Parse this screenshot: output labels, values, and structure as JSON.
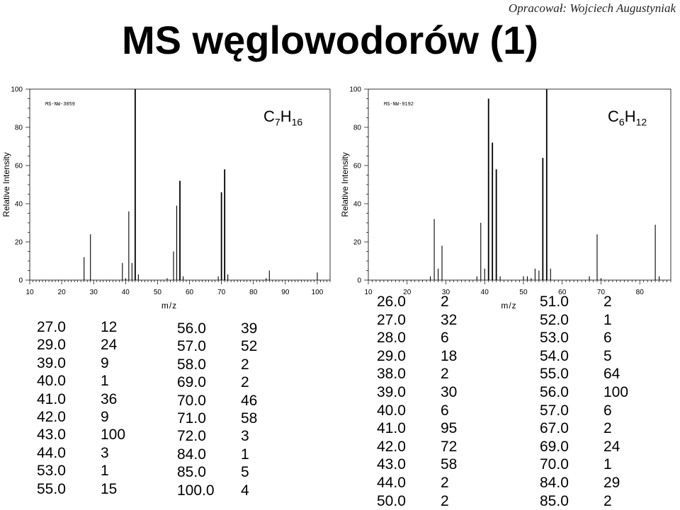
{
  "author": "Opracował: Wojciech Augustyniak",
  "title": "MS węglowodorów (1)",
  "chart_data": [
    {
      "type": "bar",
      "label": "MS-NW-3059",
      "formula": {
        "c": "C",
        "cn": "7",
        "h": "H",
        "hn": "16"
      },
      "xlabel": "m/z",
      "ylabel": "Relative Intensity",
      "xlim": [
        10,
        104
      ],
      "ylim": [
        0,
        100
      ],
      "xticks": [
        10,
        20,
        30,
        40,
        50,
        60,
        70,
        80,
        90,
        100
      ],
      "yticks": [
        0,
        20,
        40,
        60,
        80,
        100
      ],
      "peaks": [
        {
          "mz": 27,
          "i": 12
        },
        {
          "mz": 29,
          "i": 24
        },
        {
          "mz": 39,
          "i": 9
        },
        {
          "mz": 40,
          "i": 1
        },
        {
          "mz": 41,
          "i": 36
        },
        {
          "mz": 42,
          "i": 9
        },
        {
          "mz": 43,
          "i": 100
        },
        {
          "mz": 44,
          "i": 3
        },
        {
          "mz": 53,
          "i": 1
        },
        {
          "mz": 55,
          "i": 15
        },
        {
          "mz": 56,
          "i": 39
        },
        {
          "mz": 57,
          "i": 52
        },
        {
          "mz": 58,
          "i": 2
        },
        {
          "mz": 69,
          "i": 2
        },
        {
          "mz": 70,
          "i": 46
        },
        {
          "mz": 71,
          "i": 58
        },
        {
          "mz": 72,
          "i": 3
        },
        {
          "mz": 84,
          "i": 1
        },
        {
          "mz": 85,
          "i": 5
        },
        {
          "mz": 100,
          "i": 4
        }
      ]
    },
    {
      "type": "bar",
      "label": "MS-NW-9192",
      "formula": {
        "c": "C",
        "cn": "6",
        "h": "H",
        "hn": "12"
      },
      "xlabel": "m/z",
      "ylabel": "Relative Intensity",
      "xlim": [
        10,
        88
      ],
      "ylim": [
        0,
        100
      ],
      "xticks": [
        10,
        20,
        30,
        40,
        50,
        60,
        70,
        80
      ],
      "yticks": [
        0,
        20,
        40,
        60,
        80,
        100
      ],
      "peaks": [
        {
          "mz": 26,
          "i": 2
        },
        {
          "mz": 27,
          "i": 32
        },
        {
          "mz": 28,
          "i": 6
        },
        {
          "mz": 29,
          "i": 18
        },
        {
          "mz": 38,
          "i": 2
        },
        {
          "mz": 39,
          "i": 30
        },
        {
          "mz": 40,
          "i": 6
        },
        {
          "mz": 41,
          "i": 95
        },
        {
          "mz": 42,
          "i": 72
        },
        {
          "mz": 43,
          "i": 58
        },
        {
          "mz": 44,
          "i": 2
        },
        {
          "mz": 50,
          "i": 2
        },
        {
          "mz": 51,
          "i": 2
        },
        {
          "mz": 52,
          "i": 1
        },
        {
          "mz": 53,
          "i": 6
        },
        {
          "mz": 54,
          "i": 5
        },
        {
          "mz": 55,
          "i": 64
        },
        {
          "mz": 56,
          "i": 100
        },
        {
          "mz": 57,
          "i": 6
        },
        {
          "mz": 67,
          "i": 2
        },
        {
          "mz": 69,
          "i": 24
        },
        {
          "mz": 70,
          "i": 1
        },
        {
          "mz": 84,
          "i": 29
        },
        {
          "mz": 85,
          "i": 2
        }
      ]
    }
  ],
  "tables": {
    "t1a": [
      [
        "27.0",
        "12"
      ],
      [
        "29.0",
        "24"
      ],
      [
        "39.0",
        "9"
      ],
      [
        "40.0",
        "1"
      ],
      [
        "41.0",
        "36"
      ],
      [
        "42.0",
        "9"
      ],
      [
        "43.0",
        "100"
      ],
      [
        "44.0",
        "3"
      ],
      [
        "53.0",
        "1"
      ],
      [
        "55.0",
        "15"
      ]
    ],
    "t1b": [
      [
        "56.0",
        "39"
      ],
      [
        "57.0",
        "52"
      ],
      [
        "58.0",
        "2"
      ],
      [
        "69.0",
        "2"
      ],
      [
        "70.0",
        "46"
      ],
      [
        "71.0",
        "58"
      ],
      [
        "72.0",
        "3"
      ],
      [
        "84.0",
        "1"
      ],
      [
        "85.0",
        "5"
      ],
      [
        "100.0",
        "4"
      ]
    ],
    "t2a": [
      [
        "26.0",
        "2"
      ],
      [
        "27.0",
        "32"
      ],
      [
        "28.0",
        "6"
      ],
      [
        "29.0",
        "18"
      ],
      [
        "38.0",
        "2"
      ],
      [
        "39.0",
        "30"
      ],
      [
        "40.0",
        "6"
      ],
      [
        "41.0",
        "95"
      ],
      [
        "42.0",
        "72"
      ],
      [
        "43.0",
        "58"
      ],
      [
        "44.0",
        "2"
      ],
      [
        "50.0",
        "2"
      ]
    ],
    "t2b": [
      [
        "51.0",
        "2"
      ],
      [
        "52.0",
        "1"
      ],
      [
        "53.0",
        "6"
      ],
      [
        "54.0",
        "5"
      ],
      [
        "55.0",
        "64"
      ],
      [
        "56.0",
        "100"
      ],
      [
        "57.0",
        "6"
      ],
      [
        "67.0",
        "2"
      ],
      [
        "69.0",
        "24"
      ],
      [
        "70.0",
        "1"
      ],
      [
        "84.0",
        "29"
      ],
      [
        "85.0",
        "2"
      ]
    ]
  }
}
